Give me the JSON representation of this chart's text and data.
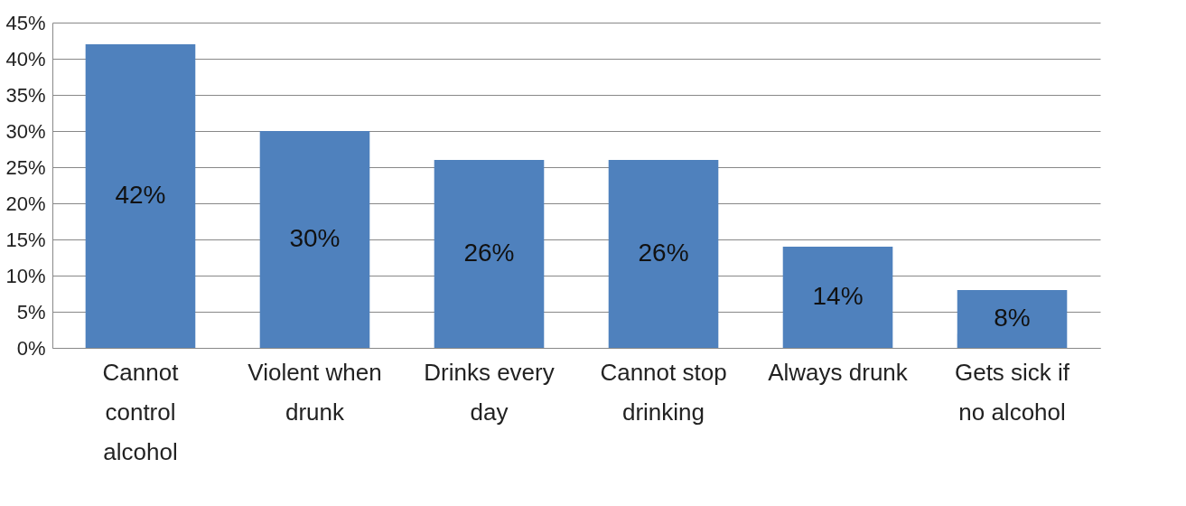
{
  "chart_data": {
    "type": "bar",
    "categories": [
      "Cannot control alcohol",
      "Violent when drunk",
      "Drinks every day",
      "Cannot stop drinking",
      "Always drunk",
      "Gets sick if no alcohol"
    ],
    "values": [
      42,
      30,
      26,
      26,
      14,
      8
    ],
    "value_labels": [
      "42%",
      "30%",
      "26%",
      "26%",
      "14%",
      "8%"
    ],
    "color": "#4f81bd",
    "ylim": [
      0,
      45
    ],
    "yticks": [
      {
        "value": 0,
        "label": "0%"
      },
      {
        "value": 5,
        "label": "5%"
      },
      {
        "value": 10,
        "label": "10%"
      },
      {
        "value": 15,
        "label": "15%"
      },
      {
        "value": 20,
        "label": "20%"
      },
      {
        "value": 25,
        "label": "25%"
      },
      {
        "value": 30,
        "label": "30%"
      },
      {
        "value": 35,
        "label": "35%"
      },
      {
        "value": 40,
        "label": "40%"
      },
      {
        "value": 45,
        "label": "45%"
      }
    ],
    "grid": "y"
  }
}
